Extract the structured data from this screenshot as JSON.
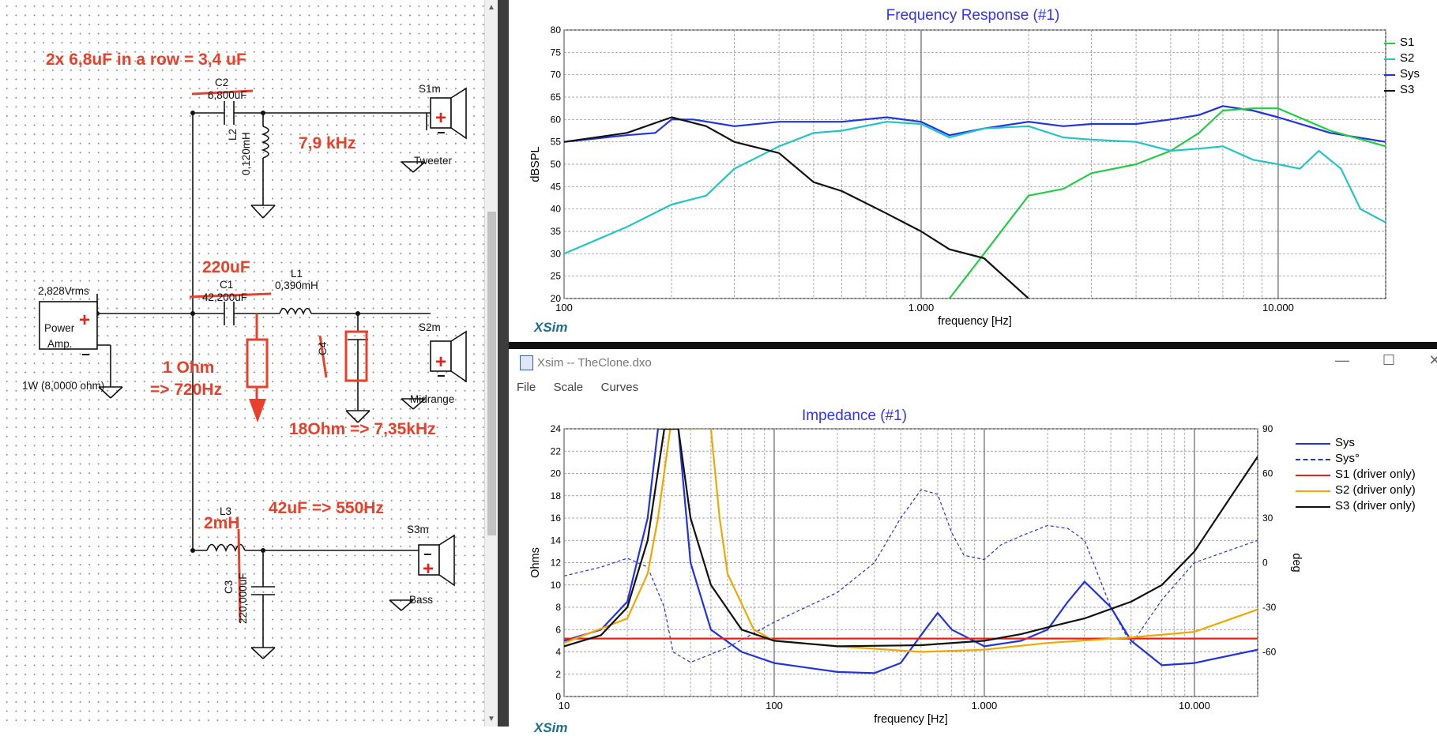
{
  "schematic": {
    "annotations": {
      "c2_note": "2x 6,8uF in a row = 3,4 uF",
      "tweeter_freq": "7,9 kHz",
      "c1_new": "220uF",
      "resistor_1": "1 Ohm",
      "resistor_1_freq": "=> 720Hz",
      "resistor_2": "18Ohm => 7,35kHz",
      "c3_note": "42uF => 550Hz",
      "l3_new": "2mH"
    },
    "labels": {
      "c2": "C2",
      "c2_value": "6,800uF",
      "l2": "L2",
      "l2_value": "0,120mH",
      "s1m": "S1m",
      "tweeter": "Tweeter",
      "source_voltage": "2,828Vrms",
      "power": "Power",
      "amp": "Amp.",
      "source_impedance": "1W (8,0000 ohm)",
      "c1": "C1",
      "c1_value": "42,200uF",
      "l1": "L1",
      "l1_value": "0,390mH",
      "c4": "C4",
      "s2m": "S2m",
      "midrange": "Midrange",
      "l3": "L3",
      "c3": "C3",
      "c3_value": "220,000uF",
      "s3m": "S3m",
      "bass": "Bass"
    },
    "colors": {
      "annotation": "#e8402a",
      "wire": "#111111"
    }
  },
  "frequency_response": {
    "title": "Frequency Response (#1)",
    "xlabel": "frequency [Hz]",
    "ylabel": "dBSPL",
    "logo": "XSim",
    "x_ticks": [
      "100",
      "1.000",
      "10.000"
    ],
    "y_ticks": [
      "80",
      "75",
      "70",
      "65",
      "60",
      "55",
      "50",
      "45",
      "40",
      "35",
      "30",
      "25",
      "20"
    ],
    "legend": [
      {
        "name": "S1",
        "color": "#22cc44"
      },
      {
        "name": "S2",
        "color": "#22c4c4"
      },
      {
        "name": "Sys",
        "color": "#2233dd"
      },
      {
        "name": "S3",
        "color": "#111111"
      }
    ]
  },
  "impedance_window": {
    "window_title": "Xsim -- TheClone.dxo",
    "menu": [
      "File",
      "Scale",
      "Curves"
    ],
    "title": "Impedance (#1)",
    "xlabel": "frequency [Hz]",
    "ylabel": "Ohms",
    "y2label": "deg",
    "logo": "XSim",
    "x_ticks": [
      "10",
      "100",
      "1.000",
      "10.000"
    ],
    "y_ticks": [
      "24",
      "22",
      "20",
      "18",
      "16",
      "14",
      "12",
      "10",
      "8",
      "6",
      "4",
      "2",
      "0"
    ],
    "y2_ticks": [
      "90",
      "60",
      "30",
      "0",
      "-30",
      "-60"
    ],
    "legend": [
      {
        "name": "Sys",
        "color": "#2233dd",
        "style": "solid"
      },
      {
        "name": "Sys°",
        "color": "#2233dd",
        "style": "dashed"
      },
      {
        "name": "S1 (driver only)",
        "color": "#e8201a",
        "style": "solid"
      },
      {
        "name": "S2 (driver only)",
        "color": "#f0a800",
        "style": "solid"
      },
      {
        "name": "S3 (driver only)",
        "color": "#111111",
        "style": "solid"
      }
    ],
    "window_buttons": {
      "minimize": "—",
      "maximize": "☐",
      "close": "✕"
    }
  },
  "chart_data": [
    {
      "type": "line",
      "title": "Frequency Response (#1)",
      "xlabel": "frequency [Hz]",
      "ylabel": "dBSPL",
      "xscale": "log",
      "xlim": [
        100,
        20000
      ],
      "ylim": [
        20,
        80
      ],
      "grid": true,
      "legend_position": "right",
      "series": [
        {
          "name": "Sys",
          "color": "#2233dd",
          "points": [
            [
              100,
              55
            ],
            [
              150,
              56.5
            ],
            [
              180,
              57
            ],
            [
              200,
              60
            ],
            [
              230,
              60
            ],
            [
              300,
              58.5
            ],
            [
              400,
              59.5
            ],
            [
              600,
              59.5
            ],
            [
              800,
              60.5
            ],
            [
              1000,
              59.5
            ],
            [
              1200,
              56.5
            ],
            [
              1500,
              58
            ],
            [
              2000,
              59.5
            ],
            [
              2500,
              58.5
            ],
            [
              3000,
              59
            ],
            [
              4000,
              59
            ],
            [
              5000,
              60
            ],
            [
              6000,
              61
            ],
            [
              7000,
              63
            ],
            [
              8500,
              62
            ],
            [
              10000,
              60.5
            ],
            [
              14000,
              57
            ],
            [
              20000,
              55
            ]
          ]
        },
        {
          "name": "S1",
          "color": "#22cc44",
          "points": [
            [
              1200,
              20
            ],
            [
              1500,
              30
            ],
            [
              2000,
              43
            ],
            [
              2500,
              44.5
            ],
            [
              3000,
              48
            ],
            [
              4000,
              50
            ],
            [
              5000,
              53
            ],
            [
              6000,
              57
            ],
            [
              7000,
              62
            ],
            [
              8500,
              62.5
            ],
            [
              10000,
              62.5
            ],
            [
              14000,
              57.5
            ],
            [
              20000,
              54
            ]
          ]
        },
        {
          "name": "S2",
          "color": "#22c4c4",
          "points": [
            [
              100,
              30
            ],
            [
              150,
              36
            ],
            [
              200,
              41
            ],
            [
              250,
              43
            ],
            [
              300,
              49
            ],
            [
              400,
              54
            ],
            [
              500,
              57
            ],
            [
              600,
              57.5
            ],
            [
              800,
              59.5
            ],
            [
              1000,
              59
            ],
            [
              1200,
              56
            ],
            [
              1500,
              58
            ],
            [
              2000,
              58.5
            ],
            [
              2500,
              56
            ],
            [
              3000,
              55.5
            ],
            [
              4000,
              55
            ],
            [
              5000,
              53
            ],
            [
              6000,
              53.5
            ],
            [
              7000,
              54
            ],
            [
              8500,
              51
            ],
            [
              10000,
              50
            ],
            [
              11500,
              49
            ],
            [
              13000,
              53
            ],
            [
              15000,
              49
            ],
            [
              17000,
              40
            ],
            [
              20000,
              37
            ]
          ]
        },
        {
          "name": "S3",
          "color": "#111111",
          "points": [
            [
              100,
              55
            ],
            [
              150,
              57
            ],
            [
              200,
              60.5
            ],
            [
              250,
              58.5
            ],
            [
              300,
              55
            ],
            [
              400,
              52.5
            ],
            [
              500,
              46
            ],
            [
              600,
              44
            ],
            [
              800,
              39
            ],
            [
              1000,
              35
            ],
            [
              1200,
              31
            ],
            [
              1500,
              29
            ],
            [
              2000,
              20
            ]
          ]
        }
      ]
    },
    {
      "type": "line",
      "title": "Impedance (#1)",
      "xlabel": "frequency [Hz]",
      "ylabel": "Ohms",
      "y2label": "deg",
      "xscale": "log",
      "xlim": [
        10,
        20000
      ],
      "ylim": [
        0,
        24
      ],
      "y2lim": [
        -90,
        90
      ],
      "grid": true,
      "legend_position": "right",
      "series": [
        {
          "name": "Sys",
          "axis": "left",
          "color": "#2233dd",
          "points": [
            [
              10,
              5
            ],
            [
              15,
              6
            ],
            [
              20,
              8.5
            ],
            [
              25,
              16
            ],
            [
              28,
              24
            ],
            [
              35,
              24
            ],
            [
              40,
              12
            ],
            [
              50,
              6
            ],
            [
              70,
              4
            ],
            [
              100,
              3
            ],
            [
              200,
              2.2
            ],
            [
              300,
              2.1
            ],
            [
              400,
              3
            ],
            [
              500,
              5.5
            ],
            [
              600,
              7.5
            ],
            [
              700,
              6
            ],
            [
              1000,
              4.5
            ],
            [
              1500,
              5
            ],
            [
              2000,
              6
            ],
            [
              2500,
              8.5
            ],
            [
              3000,
              10.3
            ],
            [
              4000,
              8
            ],
            [
              5000,
              5
            ],
            [
              7000,
              2.8
            ],
            [
              10000,
              3
            ],
            [
              20000,
              4.2
            ]
          ]
        },
        {
          "name": "Sys°",
          "axis": "right",
          "color": "#2233dd",
          "dashed": true,
          "points": [
            [
              10,
              -9
            ],
            [
              15,
              -3
            ],
            [
              20,
              3
            ],
            [
              25,
              -3
            ],
            [
              30,
              -30
            ],
            [
              33,
              -60
            ],
            [
              40,
              -67
            ],
            [
              60,
              -57
            ],
            [
              100,
              -40
            ],
            [
              200,
              -20
            ],
            [
              300,
              0
            ],
            [
              400,
              30
            ],
            [
              500,
              49
            ],
            [
              600,
              46
            ],
            [
              700,
              20
            ],
            [
              800,
              5
            ],
            [
              1000,
              2
            ],
            [
              1200,
              12
            ],
            [
              1500,
              18
            ],
            [
              2000,
              25
            ],
            [
              2500,
              23
            ],
            [
              3000,
              15
            ],
            [
              4000,
              -30
            ],
            [
              5000,
              -55
            ],
            [
              7000,
              -25
            ],
            [
              10000,
              0
            ],
            [
              20000,
              15
            ]
          ]
        },
        {
          "name": "S1 (driver only)",
          "axis": "left",
          "color": "#e8201a",
          "points": [
            [
              10,
              5.2
            ],
            [
              20000,
              5.2
            ]
          ]
        },
        {
          "name": "S2 (driver only)",
          "axis": "left",
          "color": "#f0a800",
          "points": [
            [
              10,
              4.8
            ],
            [
              20,
              7
            ],
            [
              25,
              11
            ],
            [
              28,
              16
            ],
            [
              32,
              24
            ],
            [
              50,
              24
            ],
            [
              55,
              16
            ],
            [
              60,
              11
            ],
            [
              80,
              6
            ],
            [
              100,
              5
            ],
            [
              200,
              4.5
            ],
            [
              500,
              4
            ],
            [
              1000,
              4.2
            ],
            [
              2000,
              4.8
            ],
            [
              5000,
              5.3
            ],
            [
              10000,
              5.8
            ],
            [
              20000,
              7.8
            ]
          ]
        },
        {
          "name": "S3 (driver only)",
          "axis": "left",
          "color": "#111111",
          "points": [
            [
              10,
              4.5
            ],
            [
              15,
              5.5
            ],
            [
              20,
              8
            ],
            [
              25,
              14
            ],
            [
              30,
              24
            ],
            [
              35,
              24
            ],
            [
              40,
              16
            ],
            [
              50,
              10
            ],
            [
              70,
              6
            ],
            [
              100,
              5
            ],
            [
              200,
              4.5
            ],
            [
              500,
              4.6
            ],
            [
              1000,
              5
            ],
            [
              1500,
              5.6
            ],
            [
              2000,
              6.2
            ],
            [
              3000,
              7
            ],
            [
              5000,
              8.5
            ],
            [
              7000,
              10
            ],
            [
              10000,
              13
            ],
            [
              15000,
              18
            ],
            [
              20000,
              21.5
            ]
          ]
        }
      ]
    }
  ]
}
